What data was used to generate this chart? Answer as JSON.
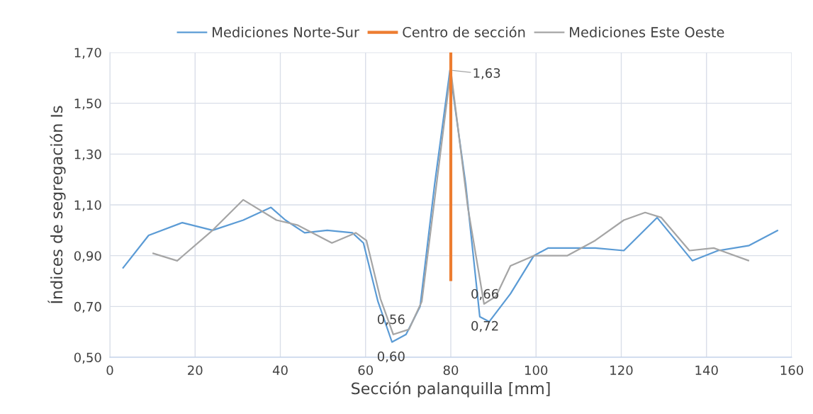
{
  "chart_data": {
    "type": "line",
    "xlabel": "Sección palanquilla [mm]",
    "ylabel": "Índices de segregación Is",
    "xlim": [
      0,
      160
    ],
    "xticks": [
      0,
      20,
      40,
      60,
      80,
      100,
      120,
      140,
      160
    ],
    "ylim": [
      0.5,
      1.7
    ],
    "yticks": [
      {
        "value": 0.5,
        "label": "0,50"
      },
      {
        "value": 0.7,
        "label": "0,70"
      },
      {
        "value": 0.9,
        "label": "0,90"
      },
      {
        "value": 1.1,
        "label": "1,10"
      },
      {
        "value": 1.3,
        "label": "1,30"
      },
      {
        "value": 1.5,
        "label": "1,50"
      },
      {
        "value": 1.7,
        "label": "1,70"
      }
    ],
    "grid": true,
    "legend": "top",
    "line_style": "solid",
    "marker": "none",
    "series": [
      {
        "name": "Mediciones Norte-Sur",
        "color": "#5b9bd5",
        "x": [
          3.0,
          9.1,
          17,
          24.1,
          31.3,
          37.8,
          41.2,
          45.7,
          51,
          56.9,
          59.5,
          62.9,
          66.2,
          69.5,
          72.8,
          76.2,
          79.8,
          83.5,
          86.8,
          89,
          94,
          99.5,
          102.8,
          113.9,
          120.6,
          128.4,
          136.7,
          142.7,
          150,
          156.8
        ],
        "values": [
          0.85,
          0.98,
          1.03,
          1.0,
          1.04,
          1.09,
          1.04,
          0.99,
          1.0,
          0.99,
          0.95,
          0.72,
          0.56,
          0.59,
          0.7,
          1.18,
          1.63,
          1.18,
          0.66,
          0.64,
          0.75,
          0.9,
          0.93,
          0.93,
          0.92,
          1.05,
          0.88,
          0.92,
          0.94,
          1.0
        ]
      },
      {
        "name": "Centro de sección",
        "color": "#ed7d31",
        "x": [
          80,
          80
        ],
        "values": [
          0.8,
          1.7
        ]
      },
      {
        "name": "Mediciones Este Oeste",
        "color": "#a5a5a5",
        "x": [
          10,
          15.8,
          24.1,
          31.3,
          39.1,
          44.1,
          52.1,
          57.7,
          60.2,
          63.5,
          66.5,
          70.2,
          73.2,
          80,
          84,
          87.8,
          90.6,
          94,
          99.5,
          107.3,
          113.9,
          120.6,
          125.6,
          129.4,
          136,
          141.7,
          150
        ],
        "values": [
          0.91,
          0.88,
          1.0,
          1.12,
          1.04,
          1.02,
          0.95,
          0.99,
          0.96,
          0.73,
          0.59,
          0.61,
          0.72,
          1.63,
          1.09,
          0.71,
          0.74,
          0.86,
          0.9,
          0.9,
          0.96,
          1.04,
          1.07,
          1.05,
          0.92,
          0.93,
          0.88
        ]
      }
    ],
    "annotations": [
      {
        "text": "0,56",
        "x": 66,
        "y": 0.56
      },
      {
        "text": "0,60",
        "x": 66,
        "y": 0.6
      },
      {
        "text": "0,66",
        "x": 88,
        "y": 0.66
      },
      {
        "text": "0,72",
        "x": 88,
        "y": 0.72
      },
      {
        "text": "1,63",
        "x": 80,
        "y": 1.63
      }
    ]
  }
}
